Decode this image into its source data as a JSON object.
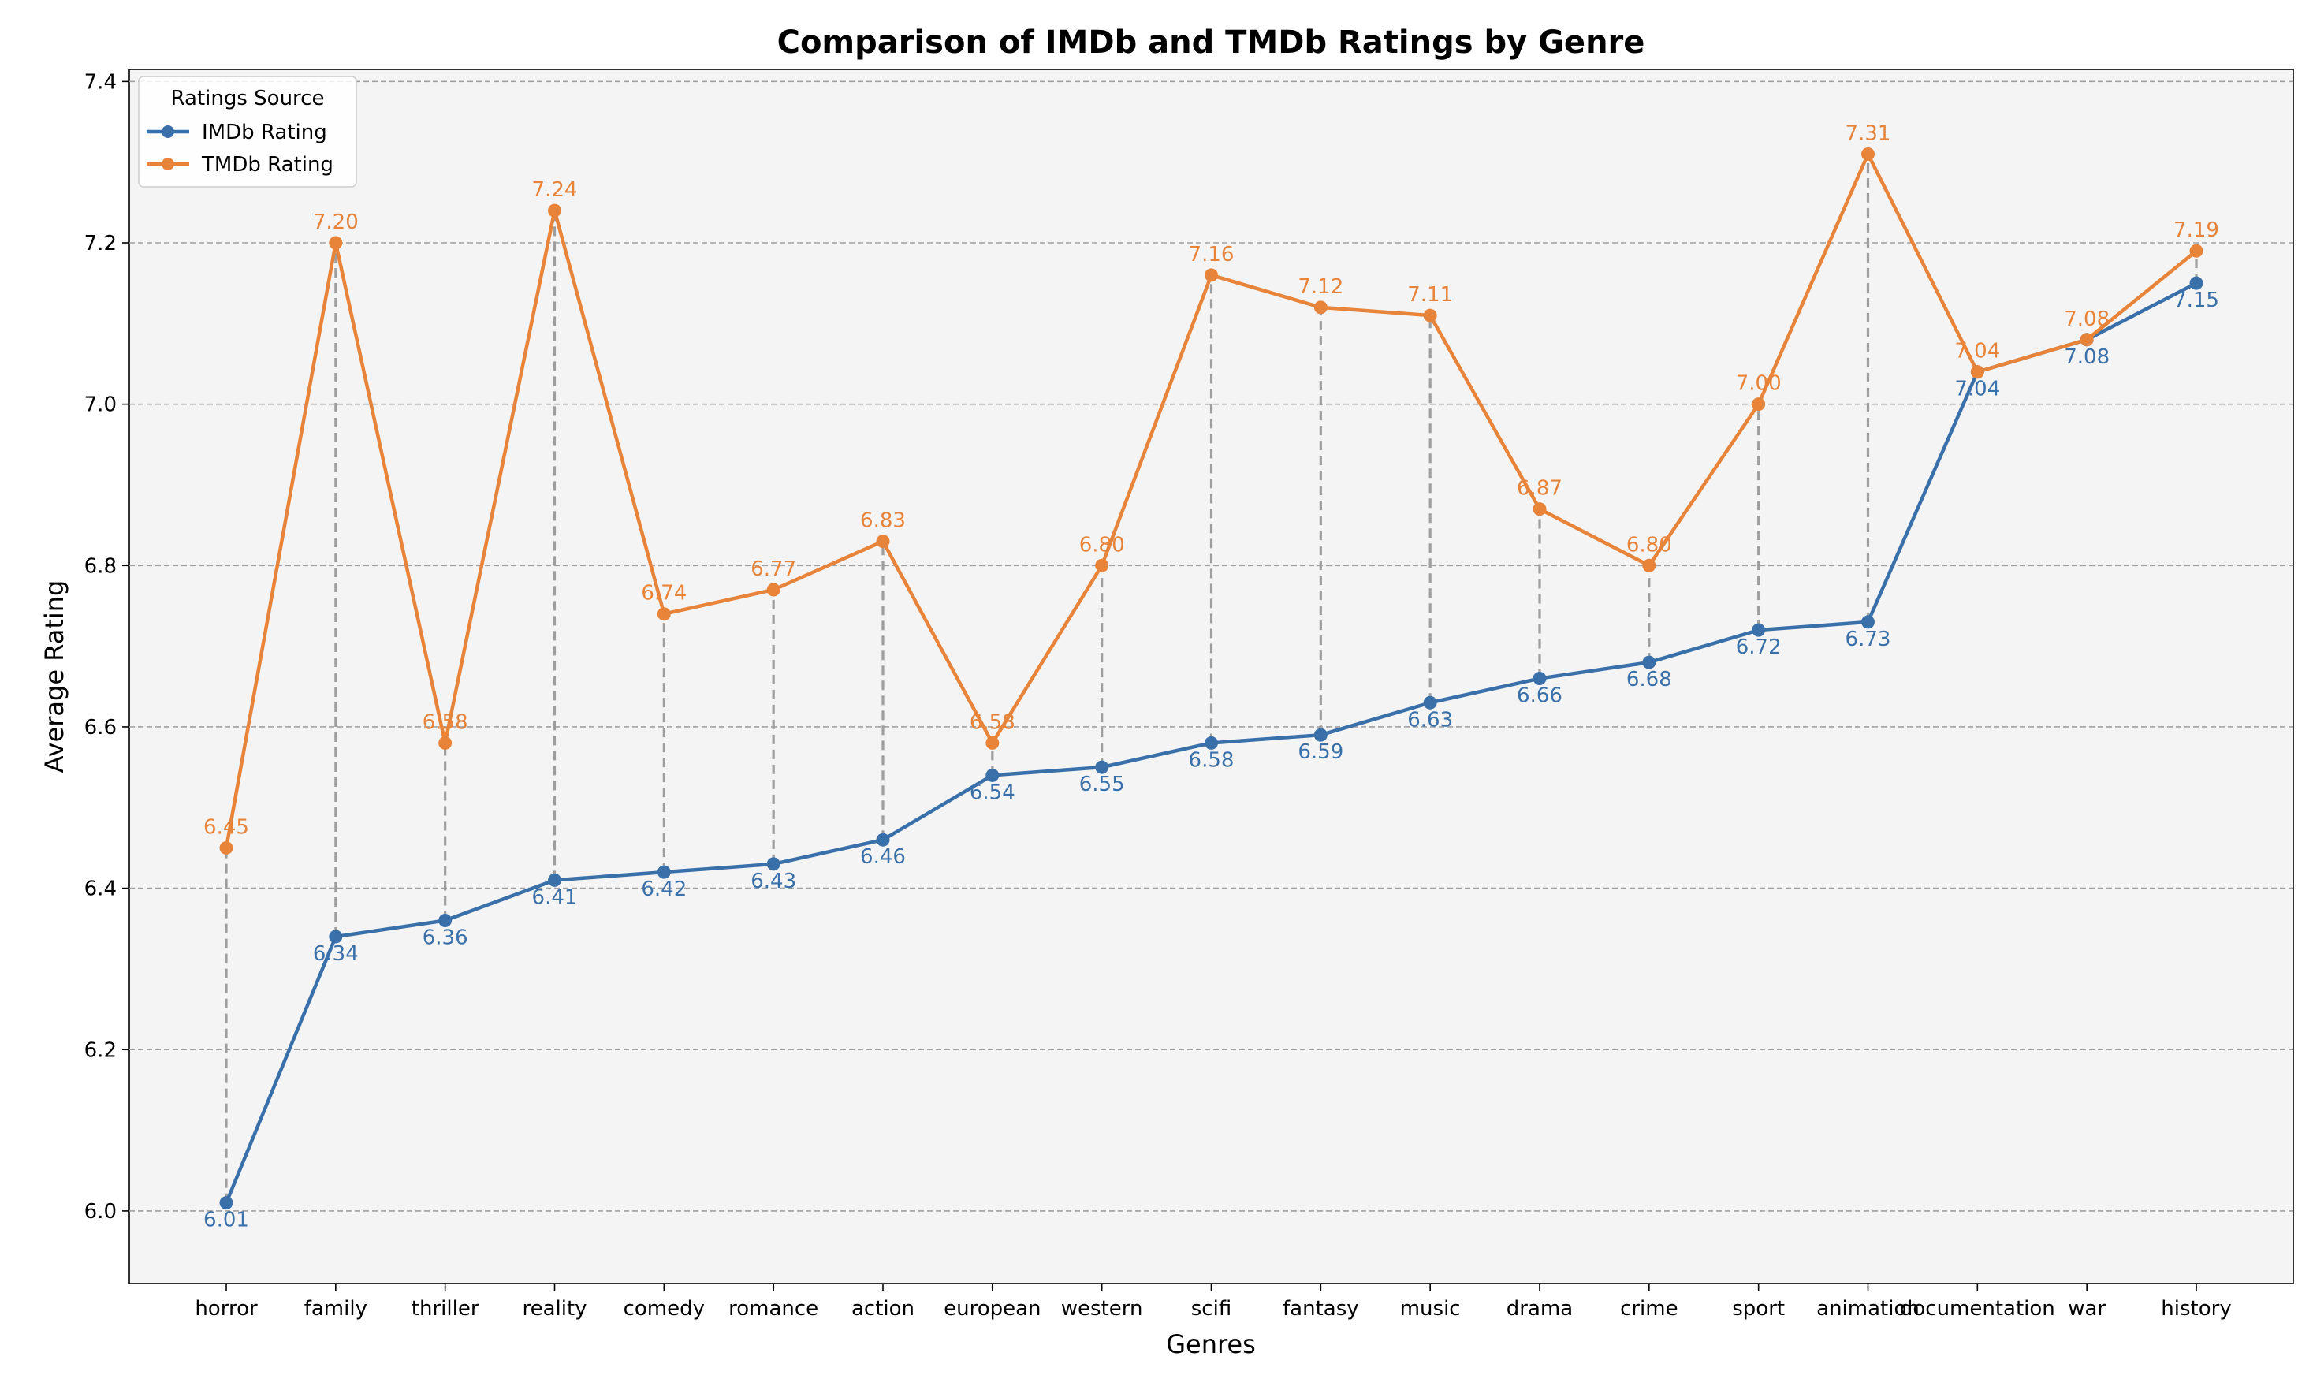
{
  "chart_data": {
    "type": "line",
    "title": "Comparison of IMDb and TMDb Ratings by Genre",
    "xlabel": "Genres",
    "ylabel": "Average Rating",
    "categories": [
      "horror",
      "family",
      "thriller",
      "reality",
      "comedy",
      "romance",
      "action",
      "european",
      "western",
      "scifi",
      "fantasy",
      "music",
      "drama",
      "crime",
      "sport",
      "animation",
      "documentation",
      "war",
      "history"
    ],
    "series": [
      {
        "name": "IMDb Rating",
        "color": "#3a70aa",
        "values": [
          6.01,
          6.34,
          6.36,
          6.41,
          6.42,
          6.43,
          6.46,
          6.54,
          6.55,
          6.58,
          6.59,
          6.63,
          6.66,
          6.68,
          6.72,
          6.73,
          7.04,
          7.08,
          7.15
        ],
        "labels": [
          "6.01",
          "6.34",
          "6.36",
          "6.41",
          "6.42",
          "6.43",
          "6.46",
          "6.54",
          "6.55",
          "6.58",
          "6.59",
          "6.63",
          "6.66",
          "6.68",
          "6.72",
          "6.73",
          "7.04",
          "7.08",
          "7.15"
        ]
      },
      {
        "name": "TMDb Rating",
        "color": "#e8843a",
        "values": [
          6.45,
          7.2,
          6.58,
          7.24,
          6.74,
          6.77,
          6.83,
          6.58,
          6.8,
          7.16,
          7.12,
          7.11,
          6.87,
          6.8,
          7.0,
          7.31,
          7.04,
          7.08,
          7.19
        ],
        "labels": [
          "6.45",
          "7.20",
          "6.58",
          "7.24",
          "6.74",
          "6.77",
          "6.83",
          "6.58",
          "6.80",
          "7.16",
          "7.12",
          "7.11",
          "6.87",
          "6.80",
          "7.00",
          "7.31",
          "7.04",
          "7.08",
          "7.19"
        ]
      }
    ],
    "ylim": [
      5.91,
      7.415
    ],
    "yticks": [
      "6.0",
      "6.2",
      "6.4",
      "6.6",
      "6.8",
      "7.0",
      "7.2",
      "7.4"
    ],
    "grid": "horizontal-dashed",
    "difference_lines": "dashed-gray",
    "legend": {
      "title": "Ratings Source",
      "placement": "top-left"
    },
    "colors": {
      "plot_background": "#f4f4f4",
      "grid": "#a0a0a0",
      "connector": "#9e9e9e"
    }
  }
}
